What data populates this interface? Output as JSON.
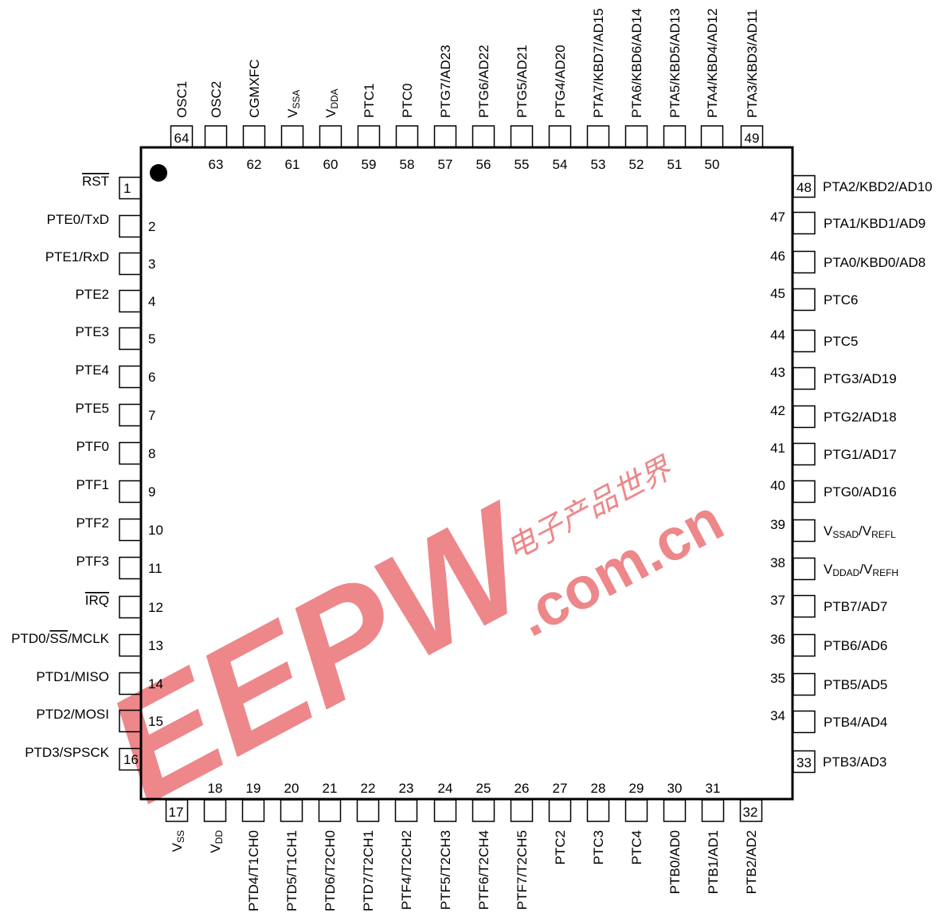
{
  "pins": {
    "left": [
      {
        "num": "1",
        "name": "RST",
        "overline": true
      },
      {
        "num": "2",
        "name": "PTE0/TxD"
      },
      {
        "num": "3",
        "name": "PTE1/RxD"
      },
      {
        "num": "4",
        "name": "PTE2"
      },
      {
        "num": "5",
        "name": "PTE3"
      },
      {
        "num": "6",
        "name": "PTE4"
      },
      {
        "num": "7",
        "name": "PTE5"
      },
      {
        "num": "8",
        "name": "PTF0"
      },
      {
        "num": "9",
        "name": "PTF1"
      },
      {
        "num": "10",
        "name": "PTF2"
      },
      {
        "num": "11",
        "name": "PTF3"
      },
      {
        "num": "12",
        "name": "IRQ",
        "overline": true
      },
      {
        "num": "13",
        "name": "PTD0/SS/MCLK",
        "rich": [
          {
            "t": "PTD0/"
          },
          {
            "t": "SS",
            "over": true
          },
          {
            "t": "/MCLK"
          }
        ]
      },
      {
        "num": "14",
        "name": "PTD1/MISO"
      },
      {
        "num": "15",
        "name": "PTD2/MOSI"
      },
      {
        "num": "16",
        "name": "PTD3/SPSCK"
      }
    ],
    "bottom": [
      {
        "num": "17",
        "name": "VSS",
        "rich": [
          {
            "t": "V"
          },
          {
            "t": "SS",
            "sub": true
          }
        ]
      },
      {
        "num": "18",
        "name": "VDD",
        "rich": [
          {
            "t": "V"
          },
          {
            "t": "DD",
            "sub": true
          }
        ]
      },
      {
        "num": "19",
        "name": "PTD4/T1CH0"
      },
      {
        "num": "20",
        "name": "PTD5/T1CH1"
      },
      {
        "num": "21",
        "name": "PTD6/T2CH0"
      },
      {
        "num": "22",
        "name": "PTD7/T2CH1"
      },
      {
        "num": "23",
        "name": "PTF4/T2CH2"
      },
      {
        "num": "24",
        "name": "PTF5/T2CH3"
      },
      {
        "num": "25",
        "name": "PTF6/T2CH4"
      },
      {
        "num": "26",
        "name": "PTF7/T2CH5"
      },
      {
        "num": "27",
        "name": "PTC2"
      },
      {
        "num": "28",
        "name": "PTC3"
      },
      {
        "num": "29",
        "name": "PTC4"
      },
      {
        "num": "30",
        "name": "PTB0/AD0"
      },
      {
        "num": "31",
        "name": "PTB1/AD1"
      },
      {
        "num": "32",
        "name": "PTB2/AD2"
      }
    ],
    "right": [
      {
        "num": "33",
        "name": "PTB3/AD3"
      },
      {
        "num": "34",
        "name": "PTB4/AD4"
      },
      {
        "num": "35",
        "name": "PTB5/AD5"
      },
      {
        "num": "36",
        "name": "PTB6/AD6"
      },
      {
        "num": "37",
        "name": "PTB7/AD7"
      },
      {
        "num": "38",
        "name": "VDDAD/VREFH",
        "rich": [
          {
            "t": "V"
          },
          {
            "t": "DDAD",
            "sub": true
          },
          {
            "t": "/V"
          },
          {
            "t": "REFH",
            "sub": true
          }
        ]
      },
      {
        "num": "39",
        "name": "VSSAD/VREFL",
        "rich": [
          {
            "t": "V"
          },
          {
            "t": "SSAD",
            "sub": true
          },
          {
            "t": "/V"
          },
          {
            "t": "REFL",
            "sub": true
          }
        ]
      },
      {
        "num": "40",
        "name": "PTG0/AD16"
      },
      {
        "num": "41",
        "name": "PTG1/AD17"
      },
      {
        "num": "42",
        "name": "PTG2/AD18"
      },
      {
        "num": "43",
        "name": "PTG3/AD19"
      },
      {
        "num": "44",
        "name": "PTC5"
      },
      {
        "num": "45",
        "name": "PTC6"
      },
      {
        "num": "46",
        "name": "PTA0/KBD0/AD8"
      },
      {
        "num": "47",
        "name": "PTA1/KBD1/AD9"
      },
      {
        "num": "48",
        "name": "PTA2/KBD2/AD10"
      }
    ],
    "top": [
      {
        "num": "49",
        "name": "PTA3/KBD3/AD11"
      },
      {
        "num": "50",
        "name": "PTA4/KBD4/AD12"
      },
      {
        "num": "51",
        "name": "PTA5/KBD5/AD13"
      },
      {
        "num": "52",
        "name": "PTA6/KBD6/AD14"
      },
      {
        "num": "53",
        "name": "PTA7/KBD7/AD15"
      },
      {
        "num": "54",
        "name": "PTG4/AD20"
      },
      {
        "num": "55",
        "name": "PTG5/AD21"
      },
      {
        "num": "56",
        "name": "PTG6/AD22"
      },
      {
        "num": "57",
        "name": "PTG7/AD23"
      },
      {
        "num": "58",
        "name": "PTC0"
      },
      {
        "num": "59",
        "name": "PTC1"
      },
      {
        "num": "60",
        "name": "VDDA",
        "rich": [
          {
            "t": "V"
          },
          {
            "t": "DDA",
            "sub": true
          }
        ]
      },
      {
        "num": "61",
        "name": "VSSA",
        "rich": [
          {
            "t": "V"
          },
          {
            "t": "SSA",
            "sub": true
          }
        ]
      },
      {
        "num": "62",
        "name": "CGMXFC"
      },
      {
        "num": "63",
        "name": "OSC2"
      },
      {
        "num": "64",
        "name": "OSC1"
      }
    ]
  },
  "watermark": {
    "logo": "EEPW",
    "domain": ".com.cn",
    "chinese": "电子产品世界",
    "color": "#e8666a"
  },
  "colors": {
    "line": "#000000",
    "background": "#ffffff"
  }
}
